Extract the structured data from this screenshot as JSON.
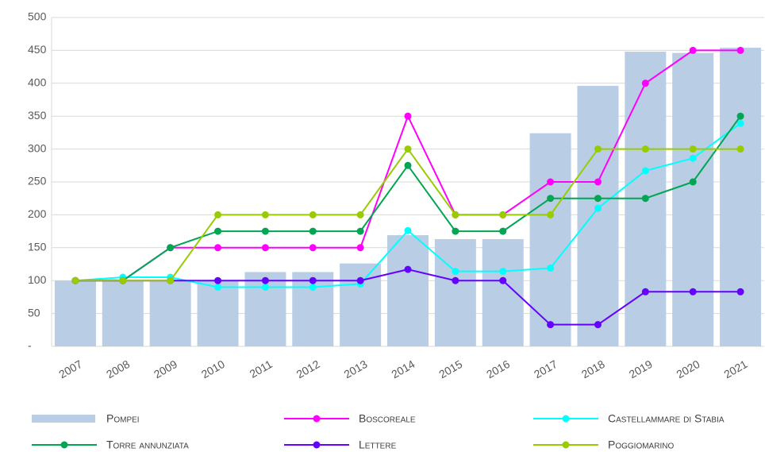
{
  "chart_data": {
    "type": "bar-line",
    "categories": [
      "2007",
      "2008",
      "2009",
      "2010",
      "2011",
      "2012",
      "2013",
      "2014",
      "2015",
      "2016",
      "2017",
      "2018",
      "2019",
      "2020",
      "2021"
    ],
    "ylim": [
      0,
      500
    ],
    "yticks": [
      {
        "value": 0,
        "label": "-"
      },
      50,
      100,
      150,
      200,
      250,
      300,
      350,
      400,
      450,
      500
    ],
    "grid": true,
    "series": [
      {
        "name": "Pompei",
        "type": "bar",
        "color": "#b9cde5",
        "values": [
          100,
          100,
          100,
          100,
          113,
          113,
          126,
          169,
          163,
          163,
          324,
          396,
          448,
          446,
          454
        ]
      },
      {
        "name": "Boscoreale",
        "type": "line",
        "color": "#ff00ff",
        "values": [
          100,
          100,
          150,
          150,
          150,
          150,
          150,
          350,
          200,
          200,
          250,
          250,
          400,
          450,
          450
        ]
      },
      {
        "name": "Castellammare di Stabia",
        "type": "line",
        "color": "#00ffff",
        "values": [
          100,
          105,
          105,
          90,
          90,
          90,
          95,
          176,
          114,
          114,
          119,
          210,
          267,
          286,
          339
        ]
      },
      {
        "name": "Torre annunziata",
        "type": "line",
        "color": "#00a651",
        "values": [
          100,
          100,
          150,
          175,
          175,
          175,
          175,
          275,
          175,
          175,
          225,
          225,
          225,
          250,
          350
        ]
      },
      {
        "name": "Lettere",
        "type": "line",
        "color": "#6600ff",
        "values": [
          100,
          100,
          100,
          100,
          100,
          100,
          100,
          117,
          100,
          100,
          33,
          33,
          83,
          83,
          83
        ]
      },
      {
        "name": "Poggiomarino",
        "type": "line",
        "color": "#99cc00",
        "values": [
          100,
          100,
          100,
          200,
          200,
          200,
          200,
          300,
          200,
          200,
          200,
          300,
          300,
          300,
          300
        ]
      }
    ]
  }
}
